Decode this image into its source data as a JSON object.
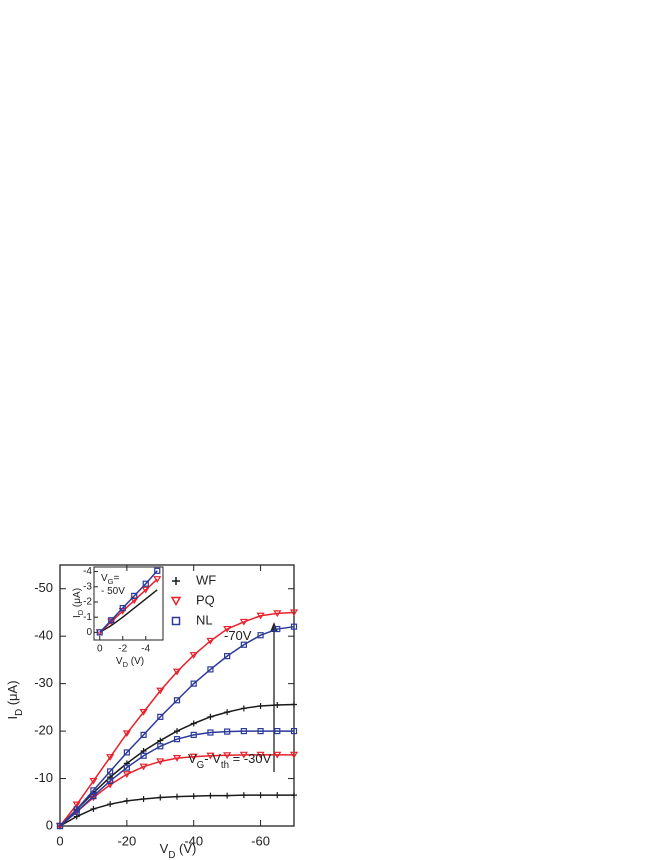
{
  "chart_data": {
    "type": "line",
    "x": [
      0,
      -5,
      -10,
      -15,
      -20,
      -25,
      -30,
      -35,
      -40,
      -45,
      -50,
      -55,
      -60,
      -65,
      -70
    ],
    "xlim": [
      0,
      -70
    ],
    "xticks": [
      0,
      -20,
      -40,
      -60
    ],
    "ylim": [
      0,
      -55
    ],
    "yticks": [
      0,
      -10,
      -20,
      -30,
      -40,
      -50
    ],
    "xlabel": [
      {
        "text": "V"
      },
      {
        "text": "D",
        "sub": true
      },
      {
        "text": "  (V)"
      }
    ],
    "ylabel": [
      {
        "text": "I"
      },
      {
        "text": "D",
        "sub": true
      },
      {
        "text": "  (μA)"
      }
    ],
    "series": [
      {
        "name": "WF",
        "color": "#1a1a1a",
        "marker": "plus",
        "curves": [
          [
            0,
            -3.5,
            -7,
            -10.3,
            -13.2,
            -15.8,
            -18,
            -20,
            -21.6,
            -23,
            -24,
            -24.8,
            -25.3,
            -25.5,
            -25.6
          ],
          [
            0,
            -2,
            -3.6,
            -4.6,
            -5.3,
            -5.7,
            -6,
            -6.2,
            -6.3,
            -6.4,
            -6.4,
            -6.5,
            -6.5,
            -6.5,
            -6.5
          ]
        ]
      },
      {
        "name": "PQ",
        "color": "#e8202a",
        "marker": "triangle",
        "curves": [
          [
            0,
            -4.5,
            -9.5,
            -14.5,
            -19.5,
            -24,
            -28.5,
            -32.5,
            -36,
            -39,
            -41.5,
            -43,
            -44.3,
            -44.8,
            -45
          ],
          [
            0,
            -3,
            -6,
            -8.7,
            -10.9,
            -12.5,
            -13.6,
            -14.3,
            -14.6,
            -14.8,
            -14.9,
            -15,
            -15,
            -15,
            -15
          ]
        ]
      },
      {
        "name": "NL",
        "color": "#2b3a9a",
        "marker": "square",
        "curves": [
          [
            0,
            -3.5,
            -7.5,
            -11.5,
            -15.5,
            -19.2,
            -23,
            -26.5,
            -30,
            -33,
            -35.8,
            -38.2,
            -40.2,
            -41.5,
            -42
          ],
          [
            0,
            -3,
            -6.3,
            -9.5,
            -12.3,
            -14.8,
            -16.8,
            -18.3,
            -19.2,
            -19.7,
            -19.9,
            -20,
            -20,
            -20,
            -20
          ]
        ]
      }
    ],
    "annotations": [
      {
        "parts": [
          {
            "text": "-70V"
          }
        ]
      },
      {
        "parts": [
          {
            "text": "V"
          },
          {
            "text": "G",
            "sub": true
          },
          {
            "text": "- V"
          },
          {
            "text": "th",
            "sub": true
          },
          {
            "text": " = -30V"
          }
        ]
      }
    ],
    "inset": {
      "x": [
        0,
        -1,
        -2,
        -3,
        -4,
        -5
      ],
      "xlim": [
        0.5,
        -5.5
      ],
      "xticks": [
        0,
        -2,
        -4
      ],
      "ylim": [
        0.5,
        -4.3
      ],
      "yticks": [
        0,
        -1,
        -2,
        -3,
        -4
      ],
      "xlabel": [
        {
          "text": "V"
        },
        {
          "text": "D",
          "sub": true
        },
        {
          "text": " (V)"
        }
      ],
      "ylabel": [
        {
          "text": "I"
        },
        {
          "text": "D",
          "sub": true
        },
        {
          "text": " (μA)"
        }
      ],
      "note": [
        [
          {
            "text": "V"
          },
          {
            "text": "G",
            "sub": true
          },
          {
            "text": "="
          }
        ],
        [
          {
            "text": "- 50V"
          }
        ]
      ],
      "series": [
        {
          "values": [
            0,
            -0.45,
            -1,
            -1.6,
            -2.2,
            -2.8
          ]
        },
        {
          "values": [
            0,
            -0.7,
            -1.4,
            -2.1,
            -2.8,
            -3.5
          ]
        },
        {
          "values": [
            0,
            -0.8,
            -1.6,
            -2.4,
            -3.2,
            -4.05
          ]
        }
      ]
    }
  }
}
